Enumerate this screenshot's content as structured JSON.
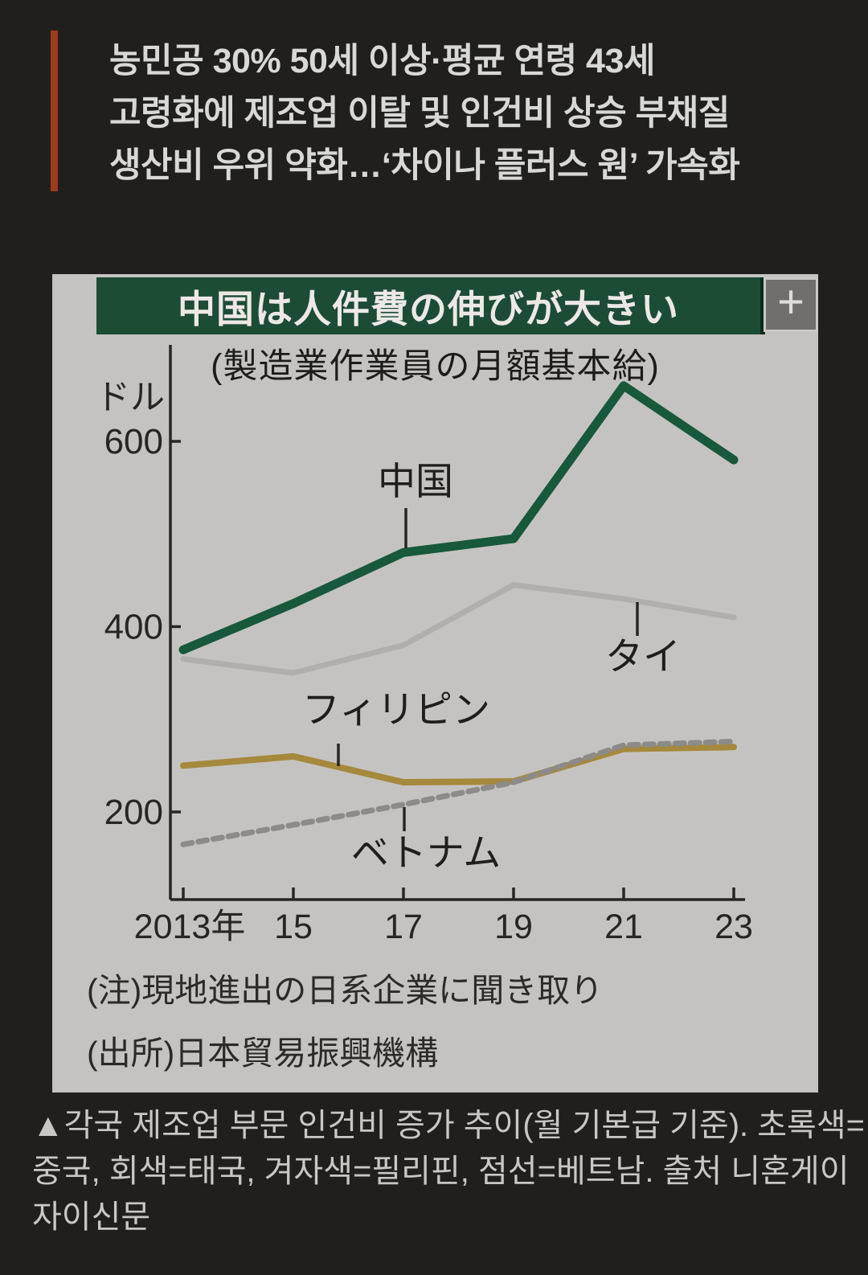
{
  "page": {
    "background": "#201f1e"
  },
  "headline": {
    "accent_color": "#9e3a1d",
    "lines": [
      "농민공 30% 50세 이상·평균 연령 43세",
      "고령화에 제조업 이탈 및 인건비 상승 부채질",
      "생산비 우위 약화…‘차이나 플러스 원’ 가속화"
    ]
  },
  "figure": {
    "background": "#c5c3c1",
    "title_bar_color": "#1d4c35",
    "title": "中国は人件費の伸びが大きい",
    "subtitle": "(製造業作業員の月額基本給)",
    "expand_icon": "+",
    "notes": [
      "(注)現地進出の日系企業に聞き取り",
      "(出所)日本貿易振興機構"
    ]
  },
  "chart_data": {
    "type": "line",
    "title": "中国は人件費の伸びが大きい",
    "subtitle": "(製造業作業員の月額基本給)",
    "ylabel": "ドル",
    "x": [
      2013,
      2015,
      2017,
      2019,
      2021,
      2023
    ],
    "x_tick_labels": [
      "2013年",
      "15",
      "17",
      "19",
      "21",
      "23"
    ],
    "y_ticks": [
      200,
      400,
      600
    ],
    "ylim": [
      110,
      705
    ],
    "grid": false,
    "legend_position": "inline-labels",
    "series": [
      {
        "name": "タイ",
        "color": "#b0afad",
        "style": "solid",
        "values": [
          365,
          350,
          380,
          445,
          430,
          410
        ]
      },
      {
        "name": "フィリピン",
        "color": "#a5893c",
        "style": "solid",
        "values": [
          250,
          260,
          232,
          233,
          268,
          270
        ]
      },
      {
        "name": "ベトナム",
        "color": "#8c8b89",
        "style": "dashed",
        "values": [
          165,
          186,
          208,
          232,
          272,
          276
        ]
      },
      {
        "name": "中国",
        "color": "#17593a",
        "style": "solid",
        "values": [
          375,
          425,
          480,
          495,
          660,
          580
        ]
      }
    ]
  },
  "caption": {
    "lines": [
      "▲각국 제조업 부문 인건비 증가 추이(월 기본급 기준). 초록색=",
      "중국, 회색=태국, 겨자색=필리핀, 점선=베트남. 출처 니혼게이",
      "자이신문"
    ],
    "text": "▲각국 제조업 부문 인건비 증가 추이(월 기본급 기준). 초록색=중국, 회색=태국, 겨자색=필리핀, 점선=베트남. 출처 니혼게이자이신문"
  }
}
